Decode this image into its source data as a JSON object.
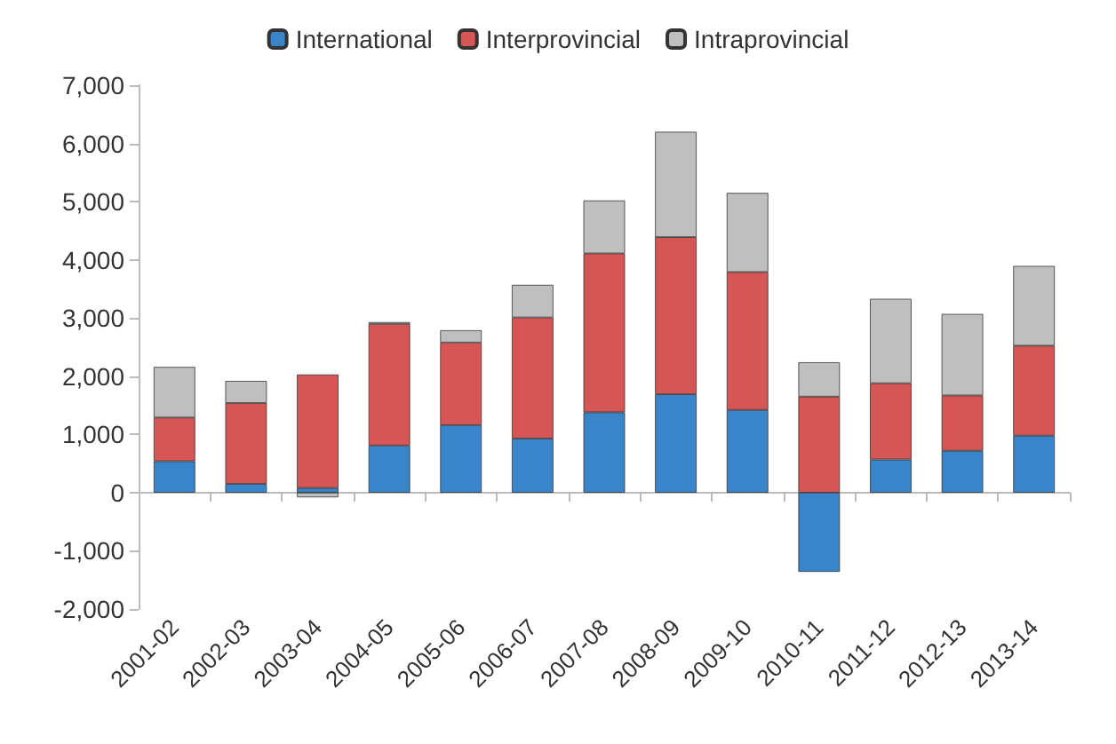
{
  "chart_data": {
    "type": "bar",
    "stacked": true,
    "categories": [
      "2001-02",
      "2002-03",
      "2003-04",
      "2004-05",
      "2005-06",
      "2006-07",
      "2007-08",
      "2008-09",
      "2009-10",
      "2010-11",
      "2011-12",
      "2012-13",
      "2013-14"
    ],
    "series": [
      {
        "name": "International",
        "color": "#3a84c9",
        "values": [
          540,
          150,
          80,
          810,
          1160,
          930,
          1380,
          1690,
          1420,
          -1360,
          570,
          720,
          980
        ]
      },
      {
        "name": "Interprovincial",
        "color": "#d65656",
        "values": [
          750,
          1390,
          1950,
          2090,
          1420,
          2080,
          2730,
          2700,
          2370,
          1650,
          1310,
          950,
          1545
        ]
      },
      {
        "name": "Intraprovincial",
        "color": "#bfbfbf",
        "values": [
          870,
          380,
          -80,
          30,
          210,
          560,
          910,
          1810,
          1360,
          590,
          1450,
          1400,
          1370
        ]
      }
    ],
    "ylim": [
      -2000,
      7000
    ],
    "yticks": [
      {
        "value": -2000,
        "label": "-2,000"
      },
      {
        "value": -1000,
        "label": "-1,000"
      },
      0,
      {
        "value": 1000,
        "label": "1,000"
      },
      {
        "value": 2000,
        "label": "2,000"
      },
      {
        "value": 3000,
        "label": "3,000"
      },
      {
        "value": 4000,
        "label": "4,000"
      },
      {
        "value": 5000,
        "label": "5,000"
      },
      {
        "value": 6000,
        "label": "6,000"
      },
      {
        "value": 7000,
        "label": "7,000"
      }
    ],
    "legend": "top"
  }
}
